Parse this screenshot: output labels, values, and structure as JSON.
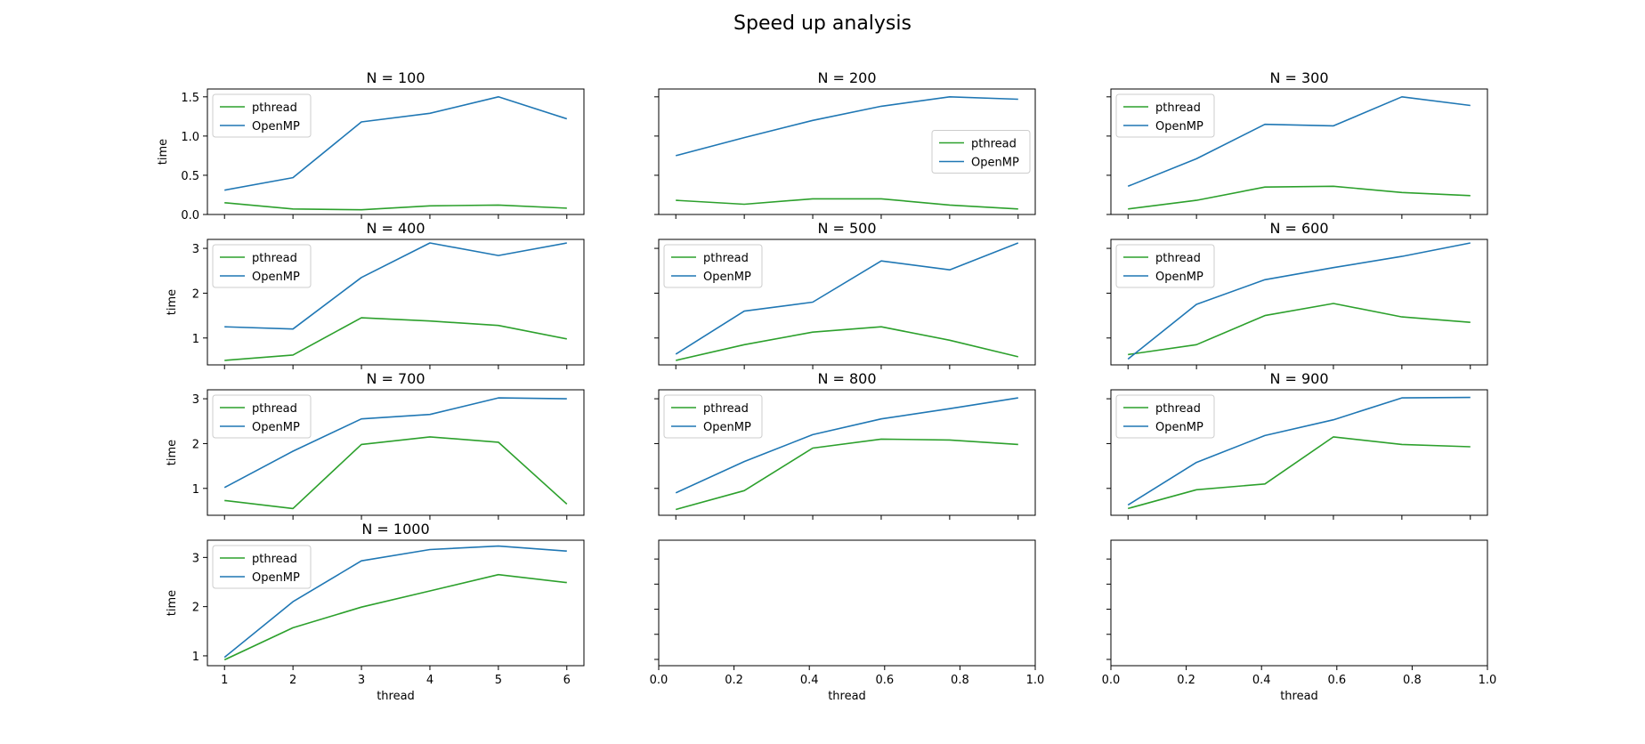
{
  "figure": {
    "title": "Speed up analysis",
    "colors": {
      "pthread": "#2ca02c",
      "OpenMP": "#1f77b4"
    }
  },
  "chart_data": [
    {
      "type": "line",
      "title": "N = 100",
      "xlabel": "",
      "ylabel": "time",
      "x": [
        1,
        2,
        3,
        4,
        5,
        6
      ],
      "xlim": [
        0.75,
        6.25
      ],
      "ylim": [
        0.0,
        1.6
      ],
      "yticks": [
        0.0,
        0.5,
        1.0,
        1.5
      ],
      "ytick_labels": [
        "0.0",
        "0.5",
        "1.0",
        "1.5"
      ],
      "xticks": [
        1,
        2,
        3,
        4,
        5,
        6
      ],
      "xtick_labels": [],
      "legend": "upper left",
      "series": [
        {
          "name": "pthread",
          "values": [
            0.15,
            0.07,
            0.06,
            0.11,
            0.12,
            0.08
          ]
        },
        {
          "name": "OpenMP",
          "values": [
            0.31,
            0.47,
            1.18,
            1.29,
            1.5,
            1.22
          ]
        }
      ]
    },
    {
      "type": "line",
      "title": "N = 200",
      "xlabel": "",
      "ylabel": "",
      "x": [
        1,
        2,
        3,
        4,
        5,
        6
      ],
      "xlim": [
        0.75,
        6.25
      ],
      "ylim": [
        0.0,
        1.6
      ],
      "yticks": [
        0.0,
        0.5,
        1.0,
        1.5
      ],
      "ytick_labels": [],
      "xticks": [
        1,
        2,
        3,
        4,
        5,
        6
      ],
      "xtick_labels": [],
      "legend": "center right",
      "series": [
        {
          "name": "pthread",
          "values": [
            0.18,
            0.13,
            0.2,
            0.2,
            0.12,
            0.07
          ]
        },
        {
          "name": "OpenMP",
          "values": [
            0.75,
            0.98,
            1.2,
            1.38,
            1.5,
            1.47
          ]
        }
      ]
    },
    {
      "type": "line",
      "title": "N = 300",
      "xlabel": "",
      "ylabel": "",
      "x": [
        1,
        2,
        3,
        4,
        5,
        6
      ],
      "xlim": [
        0.75,
        6.25
      ],
      "ylim": [
        0.0,
        1.6
      ],
      "yticks": [
        0.0,
        0.5,
        1.0,
        1.5
      ],
      "ytick_labels": [],
      "xticks": [
        1,
        2,
        3,
        4,
        5,
        6
      ],
      "xtick_labels": [],
      "legend": "upper left",
      "series": [
        {
          "name": "pthread",
          "values": [
            0.07,
            0.18,
            0.35,
            0.36,
            0.28,
            0.24
          ]
        },
        {
          "name": "OpenMP",
          "values": [
            0.36,
            0.71,
            1.15,
            1.13,
            1.5,
            1.39
          ]
        }
      ]
    },
    {
      "type": "line",
      "title": "N = 400",
      "xlabel": "",
      "ylabel": "time",
      "x": [
        1,
        2,
        3,
        4,
        5,
        6
      ],
      "xlim": [
        0.75,
        6.25
      ],
      "ylim": [
        0.4,
        3.2
      ],
      "yticks": [
        1,
        2,
        3
      ],
      "ytick_labels": [
        "1",
        "2",
        "3"
      ],
      "xticks": [
        1,
        2,
        3,
        4,
        5,
        6
      ],
      "xtick_labels": [],
      "legend": "upper left",
      "series": [
        {
          "name": "pthread",
          "values": [
            0.5,
            0.62,
            1.45,
            1.38,
            1.28,
            0.98
          ]
        },
        {
          "name": "OpenMP",
          "values": [
            1.25,
            1.2,
            2.35,
            3.12,
            2.84,
            3.12
          ]
        }
      ]
    },
    {
      "type": "line",
      "title": "N = 500",
      "xlabel": "",
      "ylabel": "",
      "x": [
        1,
        2,
        3,
        4,
        5,
        6
      ],
      "xlim": [
        0.75,
        6.25
      ],
      "ylim": [
        0.4,
        3.2
      ],
      "yticks": [
        1,
        2,
        3
      ],
      "ytick_labels": [],
      "xticks": [
        1,
        2,
        3,
        4,
        5,
        6
      ],
      "xtick_labels": [],
      "legend": "upper left",
      "series": [
        {
          "name": "pthread",
          "values": [
            0.5,
            0.85,
            1.13,
            1.25,
            0.95,
            0.58
          ]
        },
        {
          "name": "OpenMP",
          "values": [
            0.64,
            1.6,
            1.8,
            2.72,
            2.52,
            3.12
          ]
        }
      ]
    },
    {
      "type": "line",
      "title": "N = 600",
      "xlabel": "",
      "ylabel": "",
      "x": [
        1,
        2,
        3,
        4,
        5,
        6
      ],
      "xlim": [
        0.75,
        6.25
      ],
      "ylim": [
        0.4,
        3.2
      ],
      "yticks": [
        1,
        2,
        3
      ],
      "ytick_labels": [],
      "xticks": [
        1,
        2,
        3,
        4,
        5,
        6
      ],
      "xtick_labels": [],
      "legend": "upper left",
      "series": [
        {
          "name": "pthread",
          "values": [
            0.63,
            0.85,
            1.5,
            1.77,
            1.47,
            1.35
          ]
        },
        {
          "name": "OpenMP",
          "values": [
            0.53,
            1.75,
            2.3,
            2.57,
            2.82,
            3.12
          ]
        }
      ]
    },
    {
      "type": "line",
      "title": "N = 700",
      "xlabel": "",
      "ylabel": "time",
      "x": [
        1,
        2,
        3,
        4,
        5,
        6
      ],
      "xlim": [
        0.75,
        6.25
      ],
      "ylim": [
        0.4,
        3.2
      ],
      "yticks": [
        1,
        2,
        3
      ],
      "ytick_labels": [
        "1",
        "2",
        "3"
      ],
      "xticks": [
        1,
        2,
        3,
        4,
        5,
        6
      ],
      "xtick_labels": [],
      "legend": "upper left",
      "series": [
        {
          "name": "pthread",
          "values": [
            0.73,
            0.55,
            1.98,
            2.15,
            2.03,
            0.65
          ]
        },
        {
          "name": "OpenMP",
          "values": [
            1.02,
            1.83,
            2.55,
            2.65,
            3.02,
            3.0
          ]
        }
      ]
    },
    {
      "type": "line",
      "title": "N = 800",
      "xlabel": "",
      "ylabel": "",
      "x": [
        1,
        2,
        3,
        4,
        5,
        6
      ],
      "xlim": [
        0.75,
        6.25
      ],
      "ylim": [
        0.4,
        3.2
      ],
      "yticks": [
        1,
        2,
        3
      ],
      "ytick_labels": [],
      "xticks": [
        1,
        2,
        3,
        4,
        5,
        6
      ],
      "xtick_labels": [],
      "legend": "upper left",
      "series": [
        {
          "name": "pthread",
          "values": [
            0.53,
            0.95,
            1.9,
            2.1,
            2.08,
            1.98
          ]
        },
        {
          "name": "OpenMP",
          "values": [
            0.9,
            1.6,
            2.2,
            2.55,
            2.78,
            3.02
          ]
        }
      ]
    },
    {
      "type": "line",
      "title": "N = 900",
      "xlabel": "",
      "ylabel": "",
      "x": [
        1,
        2,
        3,
        4,
        5,
        6
      ],
      "xlim": [
        0.75,
        6.25
      ],
      "ylim": [
        0.4,
        3.2
      ],
      "yticks": [
        1,
        2,
        3
      ],
      "ytick_labels": [],
      "xticks": [
        1,
        2,
        3,
        4,
        5,
        6
      ],
      "xtick_labels": [],
      "legend": "upper left",
      "series": [
        {
          "name": "pthread",
          "values": [
            0.55,
            0.97,
            1.1,
            2.15,
            1.98,
            1.93
          ]
        },
        {
          "name": "OpenMP",
          "values": [
            0.63,
            1.58,
            2.18,
            2.53,
            3.02,
            3.03
          ]
        }
      ]
    },
    {
      "type": "line",
      "title": "N = 1000",
      "xlabel": "thread",
      "ylabel": "time",
      "x": [
        1,
        2,
        3,
        4,
        5,
        6
      ],
      "xlim": [
        0.75,
        6.25
      ],
      "ylim": [
        0.8,
        3.35
      ],
      "yticks": [
        1,
        2,
        3
      ],
      "ytick_labels": [
        "1",
        "2",
        "3"
      ],
      "xticks": [
        1,
        2,
        3,
        4,
        5,
        6
      ],
      "xtick_labels": [
        "1",
        "2",
        "3",
        "4",
        "5",
        "6"
      ],
      "legend": "upper left",
      "series": [
        {
          "name": "pthread",
          "values": [
            0.92,
            1.57,
            1.99,
            2.32,
            2.65,
            2.49
          ]
        },
        {
          "name": "OpenMP",
          "values": [
            0.97,
            2.1,
            2.93,
            3.16,
            3.23,
            3.13
          ]
        }
      ]
    },
    {
      "type": "line",
      "title": "",
      "xlabel": "thread",
      "ylabel": "",
      "x": [],
      "xlim": [
        0.0,
        1.0
      ],
      "ylim": [
        0.0,
        1.0
      ],
      "yticks": [
        0.05,
        0.25,
        0.45,
        0.65,
        0.85
      ],
      "ytick_labels": [],
      "xticks": [
        0.0,
        0.2,
        0.4,
        0.6,
        0.8,
        1.0
      ],
      "xtick_labels": [
        "0.0",
        "0.2",
        "0.4",
        "0.6",
        "0.8",
        "1.0"
      ],
      "legend": "",
      "series": []
    },
    {
      "type": "line",
      "title": "",
      "xlabel": "thread",
      "ylabel": "",
      "x": [],
      "xlim": [
        0.0,
        1.0
      ],
      "ylim": [
        0.0,
        1.0
      ],
      "yticks": [
        0.05,
        0.25,
        0.45,
        0.65,
        0.85
      ],
      "ytick_labels": [],
      "xticks": [
        0.0,
        0.2,
        0.4,
        0.6,
        0.8,
        1.0
      ],
      "xtick_labels": [
        "0.0",
        "0.2",
        "0.4",
        "0.6",
        "0.8",
        "1.0"
      ],
      "legend": "",
      "series": []
    }
  ]
}
